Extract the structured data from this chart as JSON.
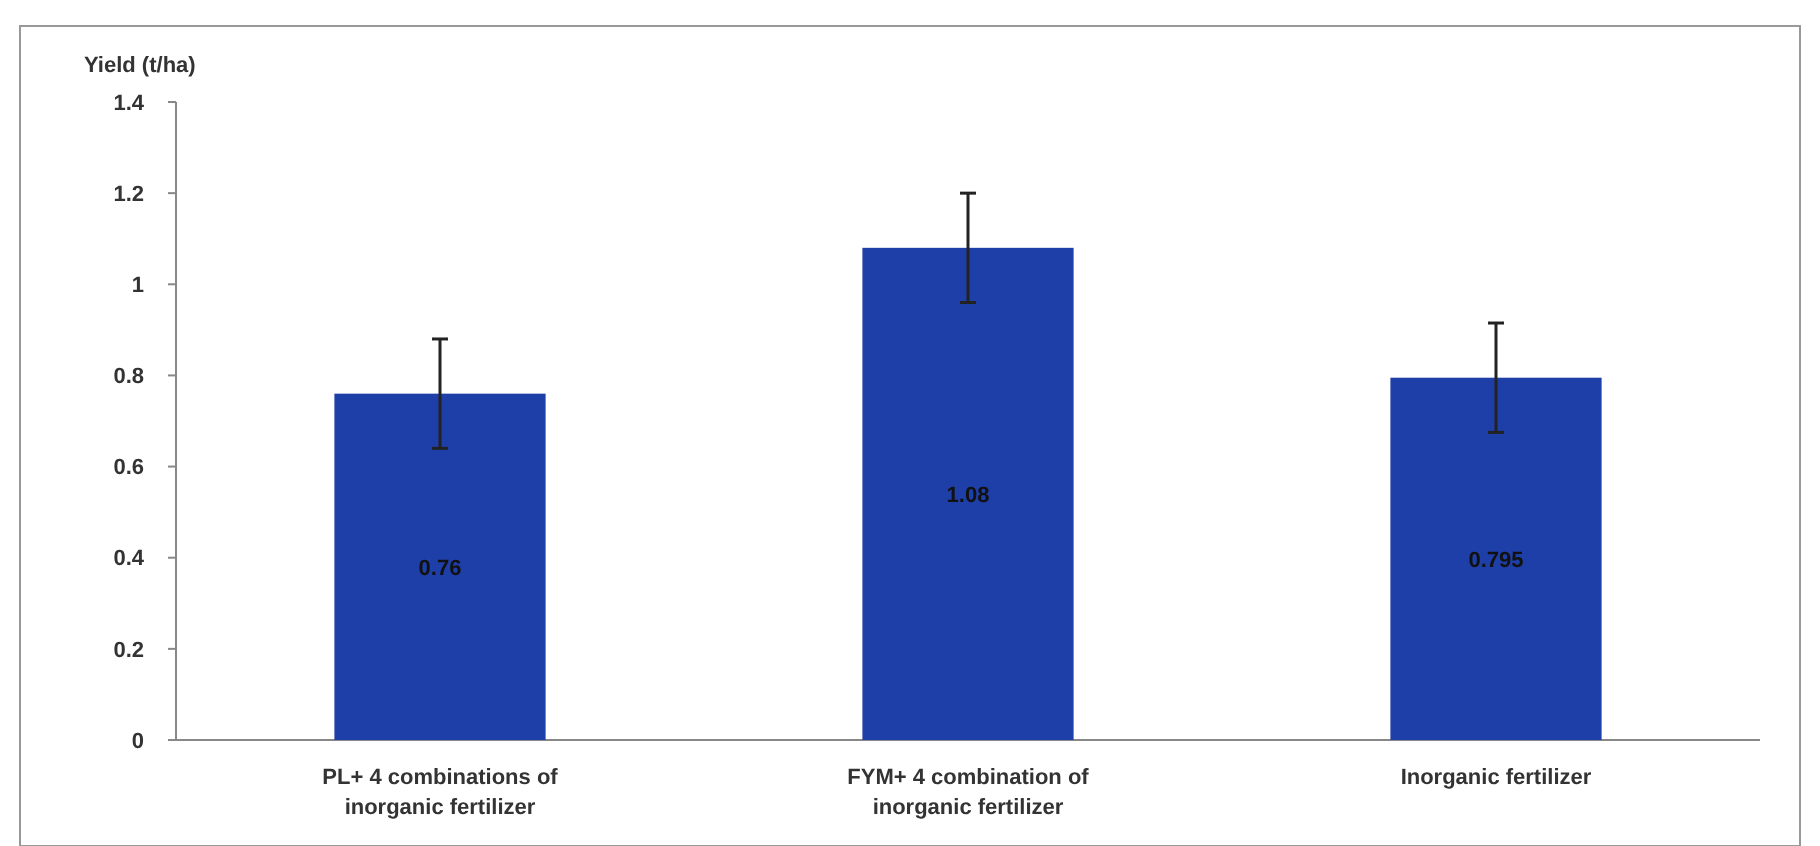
{
  "chart_data": {
    "type": "bar",
    "ylabel": "Yield (t/ha)",
    "categories": [
      "PL+ 4 combinations of inorganic fertilizer",
      "FYM+ 4 combination of inorganic fertilizer",
      "Inorganic fertilizer"
    ],
    "values": [
      0.76,
      1.08,
      0.795
    ],
    "errors": [
      0.12,
      0.12,
      0.12
    ],
    "color": "#1f3fa8",
    "ylim": [
      0,
      1.4
    ],
    "yticks": [
      0,
      0.2,
      0.4,
      0.6,
      0.8,
      1,
      1.2,
      1.4
    ],
    "data_labels": true,
    "grid": false
  }
}
